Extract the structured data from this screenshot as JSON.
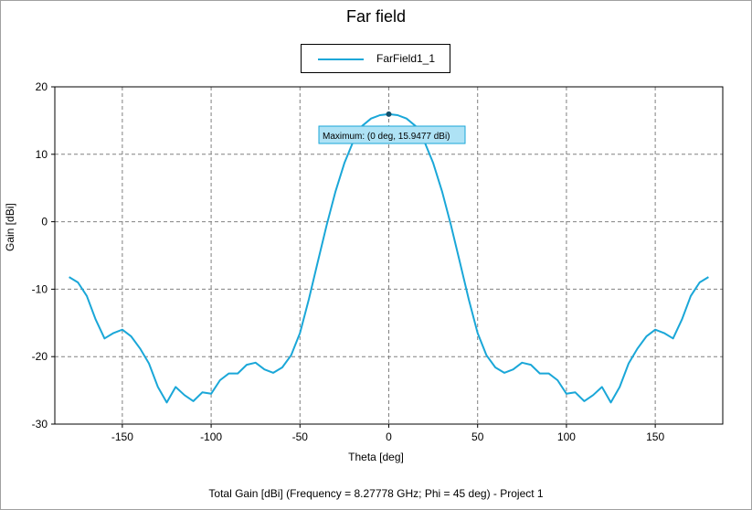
{
  "chart_data": {
    "type": "line",
    "title": "Far field",
    "xlabel": "Theta [deg]",
    "ylabel": "Gain [dBi]",
    "caption": "Total Gain [dBi] (Frequency = 8.27778 GHz; Phi = 45 deg) - Project 1",
    "xlim": [
      -188,
      188
    ],
    "ylim": [
      -30,
      20
    ],
    "x_ticks": [
      -150,
      -100,
      -50,
      0,
      50,
      100,
      150
    ],
    "y_ticks": [
      -30,
      -20,
      -10,
      0,
      10,
      20
    ],
    "grid": true,
    "legend_position": "top-center",
    "colors": {
      "series": "#1aa7d8",
      "grid": "#808080",
      "annotation_bg": "#aee2f5",
      "annotation_border": "#1aa7d8"
    },
    "series": [
      {
        "name": "FarField1_1",
        "x": [
          -180,
          -175,
          -170,
          -165,
          -160,
          -155,
          -150,
          -145,
          -140,
          -135,
          -130,
          -125,
          -120,
          -115,
          -110,
          -105,
          -100,
          -95,
          -90,
          -85,
          -80,
          -75,
          -70,
          -65,
          -60,
          -55,
          -50,
          -45,
          -40,
          -35,
          -30,
          -25,
          -20,
          -15,
          -10,
          -5,
          0,
          5,
          10,
          15,
          20,
          25,
          30,
          35,
          40,
          45,
          50,
          55,
          60,
          65,
          70,
          75,
          80,
          85,
          90,
          95,
          100,
          105,
          110,
          115,
          120,
          125,
          130,
          135,
          140,
          145,
          150,
          155,
          160,
          165,
          170,
          175,
          180
        ],
        "y": [
          -8.2,
          -9,
          -11,
          -14.5,
          -17.3,
          -16.5,
          -16,
          -17,
          -18.8,
          -21,
          -24.5,
          -26.8,
          -24.5,
          -25.7,
          -26.6,
          -25.3,
          -25.5,
          -23.5,
          -22.5,
          -22.5,
          -21.2,
          -20.9,
          -21.9,
          -22.4,
          -21.6,
          -19.8,
          -16.5,
          -11.5,
          -6,
          -0.5,
          4.5,
          8.7,
          11.9,
          14.2,
          15.3,
          15.8,
          15.9477,
          15.8,
          15.3,
          14.2,
          11.9,
          8.7,
          4.5,
          -0.5,
          -6,
          -11.5,
          -16.5,
          -19.8,
          -21.6,
          -22.4,
          -21.9,
          -20.9,
          -21.2,
          -22.5,
          -22.5,
          -23.5,
          -25.5,
          -25.3,
          -26.6,
          -25.7,
          -24.5,
          -26.8,
          -24.5,
          -21,
          -18.8,
          -17,
          -16,
          -16.5,
          -17.3,
          -14.5,
          -11,
          -9,
          -8.2
        ]
      }
    ],
    "annotation": {
      "text": "Maximum: (0 deg, 15.9477 dBi)",
      "x": 0,
      "y": 15.9477
    }
  }
}
